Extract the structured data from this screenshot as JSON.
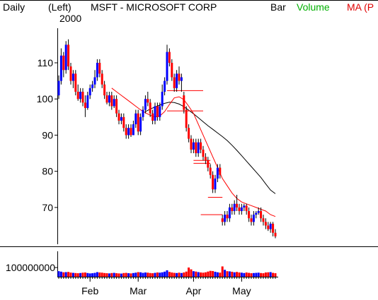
{
  "header": {
    "period": "Daily",
    "scale": "(Left)",
    "year": "2000",
    "title": "MSFT - MICROSOFT CORP",
    "bar_label": "Bar",
    "volume_label": "Volume",
    "ma_label": "MA (P",
    "colors": {
      "text": "#000000",
      "volume": "#00b000",
      "ma": "#e00000"
    }
  },
  "chart_data": [
    {
      "type": "candlestick",
      "title": "MSFT - MICROSOFT CORP",
      "ylim": [
        61,
        118
      ],
      "yticks": [
        70,
        80,
        90,
        100,
        110
      ],
      "xticks": [
        {
          "label": "Feb",
          "day": 13
        },
        {
          "label": "Mar",
          "day": 33
        },
        {
          "label": "Apr",
          "day": 56
        },
        {
          "label": "May",
          "day": 76
        }
      ],
      "colors": {
        "up": "#0000ff",
        "down": "#ff0000",
        "ma_short": "#ff0000",
        "ma_long": "#000000"
      },
      "ohlc": [
        [
          101.0,
          106.5,
          100.0,
          105.0
        ],
        [
          105.0,
          114.0,
          104.0,
          112.0
        ],
        [
          112.0,
          113.0,
          106.0,
          108.0
        ],
        [
          108.0,
          116.0,
          107.0,
          115.0
        ],
        [
          115.0,
          116.5,
          108.0,
          109.0
        ],
        [
          109.0,
          110.0,
          104.0,
          105.0
        ],
        [
          105.0,
          108.0,
          103.0,
          107.0
        ],
        [
          107.0,
          108.0,
          101.0,
          102.0
        ],
        [
          102.0,
          104.0,
          99.5,
          100.0
        ],
        [
          100.0,
          103.0,
          99.0,
          102.0
        ],
        [
          102.0,
          103.0,
          98.0,
          99.0
        ],
        [
          99.0,
          101.0,
          95.0,
          97.5
        ],
        [
          97.5,
          102.0,
          97.0,
          101.0
        ],
        [
          101.0,
          104.0,
          100.0,
          103.0
        ],
        [
          103.0,
          105.0,
          102.0,
          104.0
        ],
        [
          104.0,
          108.0,
          103.0,
          106.0
        ],
        [
          106.0,
          111.0,
          105.0,
          110.0
        ],
        [
          110.0,
          111.0,
          106.0,
          107.0
        ],
        [
          107.0,
          108.0,
          103.0,
          104.0
        ],
        [
          104.0,
          105.0,
          100.0,
          101.0
        ],
        [
          101.0,
          102.0,
          98.5,
          99.0
        ],
        [
          99.0,
          102.0,
          98.0,
          101.0
        ],
        [
          101.0,
          102.0,
          97.0,
          98.0
        ],
        [
          98.0,
          101.0,
          97.5,
          100.0
        ],
        [
          100.0,
          101.0,
          95.0,
          96.0
        ],
        [
          96.0,
          97.0,
          93.0,
          94.0
        ],
        [
          94.0,
          96.0,
          93.0,
          95.0
        ],
        [
          95.0,
          96.0,
          91.0,
          92.0
        ],
        [
          92.0,
          93.0,
          89.0,
          90.0
        ],
        [
          90.0,
          93.0,
          89.0,
          92.0
        ],
        [
          92.0,
          93.0,
          89.5,
          90.0
        ],
        [
          90.0,
          94.0,
          90.0,
          93.0
        ],
        [
          93.0,
          97.0,
          92.0,
          96.0
        ],
        [
          96.0,
          97.0,
          90.0,
          91.0
        ],
        [
          91.0,
          96.0,
          90.0,
          95.0
        ],
        [
          95.0,
          98.0,
          94.0,
          97.0
        ],
        [
          97.0,
          101.0,
          96.0,
          100.0
        ],
        [
          100.0,
          102.0,
          98.0,
          99.0
        ],
        [
          99.0,
          100.0,
          95.0,
          96.0
        ],
        [
          96.0,
          97.0,
          93.0,
          94.0
        ],
        [
          94.0,
          99.0,
          93.0,
          98.0
        ],
        [
          98.0,
          99.0,
          94.0,
          95.0
        ],
        [
          95.0,
          99.0,
          94.0,
          98.0
        ],
        [
          98.0,
          104.0,
          97.0,
          102.0
        ],
        [
          102.0,
          106.0,
          101.0,
          105.0
        ],
        [
          105.0,
          115.0,
          104.0,
          113.0
        ],
        [
          113.0,
          114.0,
          109.0,
          110.0
        ],
        [
          110.0,
          111.0,
          105.0,
          106.0
        ],
        [
          106.0,
          107.0,
          102.0,
          103.0
        ],
        [
          103.0,
          108.0,
          102.0,
          107.0
        ],
        [
          107.0,
          109.0,
          104.0,
          105.0
        ],
        [
          105.0,
          107.0,
          102.0,
          106.0
        ],
        [
          101.0,
          102.0,
          96.0,
          97.0
        ],
        [
          97.0,
          98.0,
          91.0,
          92.0
        ],
        [
          92.0,
          93.0,
          88.0,
          89.0
        ],
        [
          89.0,
          90.0,
          85.0,
          86.0
        ],
        [
          86.0,
          89.0,
          85.0,
          88.0
        ],
        [
          88.0,
          89.0,
          84.0,
          85.0
        ],
        [
          85.0,
          89.0,
          84.0,
          88.0
        ],
        [
          88.0,
          89.0,
          85.0,
          86.0
        ],
        [
          86.0,
          87.0,
          83.0,
          84.0
        ],
        [
          84.0,
          85.0,
          82.0,
          83.0
        ],
        [
          83.0,
          84.0,
          80.0,
          81.0
        ],
        [
          81.0,
          82.0,
          78.0,
          79.0
        ],
        [
          79.0,
          80.0,
          74.0,
          75.0
        ],
        [
          75.0,
          79.0,
          74.0,
          78.0
        ],
        [
          78.0,
          82.0,
          77.0,
          81.0
        ],
        [
          81.0,
          82.0,
          78.0,
          79.0
        ],
        [
          67.0,
          68.0,
          65.0,
          66.0
        ],
        [
          66.0,
          69.0,
          65.0,
          68.0
        ],
        [
          68.0,
          69.0,
          66.0,
          67.0
        ],
        [
          67.0,
          71.0,
          66.0,
          70.0
        ],
        [
          70.0,
          71.0,
          68.0,
          69.0
        ],
        [
          69.0,
          72.0,
          68.0,
          71.0
        ],
        [
          71.0,
          73.5,
          69.0,
          70.0
        ],
        [
          70.0,
          71.0,
          68.0,
          69.0
        ],
        [
          69.0,
          71.0,
          68.0,
          70.0
        ],
        [
          70.0,
          71.0,
          69.0,
          70.5
        ],
        [
          70.5,
          71.0,
          68.0,
          69.0
        ],
        [
          69.0,
          70.0,
          66.0,
          67.0
        ],
        [
          67.0,
          68.0,
          65.0,
          66.0
        ],
        [
          66.0,
          69.0,
          65.0,
          68.0
        ],
        [
          68.0,
          69.0,
          67.0,
          68.5
        ],
        [
          68.5,
          70.0,
          68.0,
          69.0
        ],
        [
          69.0,
          70.0,
          66.0,
          67.0
        ],
        [
          67.0,
          68.0,
          65.0,
          66.0
        ],
        [
          66.0,
          67.0,
          64.0,
          65.0
        ],
        [
          65.0,
          66.0,
          63.5,
          64.0
        ],
        [
          64.0,
          66.0,
          63.0,
          65.5
        ],
        [
          65.5,
          66.0,
          62.0,
          63.0
        ],
        [
          63.0,
          64.0,
          61.5,
          62.0
        ]
      ],
      "ma_short": [
        [
          22,
          103
        ],
        [
          24,
          102
        ],
        [
          26,
          101
        ],
        [
          28,
          100
        ],
        [
          30,
          99
        ],
        [
          32,
          98
        ],
        [
          34,
          97
        ],
        [
          36,
          96.2
        ],
        [
          38,
          95.5
        ],
        [
          40,
          95
        ],
        [
          42,
          95.3
        ],
        [
          44,
          96.5
        ],
        [
          46,
          98.5
        ],
        [
          48,
          100.3
        ],
        [
          50,
          100.6
        ],
        [
          52,
          99.8
        ],
        [
          54,
          98
        ],
        [
          56,
          96
        ],
        [
          58,
          93
        ],
        [
          60,
          90
        ],
        [
          62,
          87
        ],
        [
          64,
          84
        ],
        [
          66,
          81
        ],
        [
          68,
          78
        ],
        [
          70,
          76
        ],
        [
          72,
          74
        ],
        [
          74,
          72.5
        ],
        [
          76,
          71.5
        ],
        [
          78,
          71
        ],
        [
          80,
          70.5
        ],
        [
          82,
          70
        ],
        [
          84,
          69.5
        ],
        [
          86,
          69
        ],
        [
          88,
          68
        ],
        [
          90,
          67.5
        ]
      ],
      "ma_long": [
        [
          36,
          96.5
        ],
        [
          38,
          97.2
        ],
        [
          40,
          97.8
        ],
        [
          42,
          98.3
        ],
        [
          44,
          98.8
        ],
        [
          46,
          99.1
        ],
        [
          48,
          99.0
        ],
        [
          50,
          98.6
        ],
        [
          52,
          97.9
        ],
        [
          54,
          96.9
        ],
        [
          56,
          95.9
        ],
        [
          58,
          94.8
        ],
        [
          60,
          93.7
        ],
        [
          62,
          92.6
        ],
        [
          64,
          91.6
        ],
        [
          66,
          90.6
        ],
        [
          68,
          89.6
        ],
        [
          70,
          88.5
        ],
        [
          72,
          87.2
        ],
        [
          74,
          85.8
        ],
        [
          76,
          84.3
        ],
        [
          78,
          82.8
        ],
        [
          80,
          81.3
        ],
        [
          82,
          79.8
        ],
        [
          84,
          78.3
        ],
        [
          86,
          76.5
        ],
        [
          88,
          74.8
        ],
        [
          90,
          73.8
        ]
      ],
      "gap_lines": [
        {
          "y": 102.3,
          "x_from": 45,
          "x_to": 60
        },
        {
          "y": 96.7,
          "x_from": 45,
          "x_to": 60
        },
        {
          "y": 83.0,
          "x_from": 56,
          "x_to": 63
        },
        {
          "y": 82.2,
          "x_from": 56,
          "x_to": 63
        },
        {
          "y": 72.8,
          "x_from": 62,
          "x_to": 68
        },
        {
          "y": 68.0,
          "x_from": 59,
          "x_to": 68
        }
      ]
    },
    {
      "type": "bar",
      "title": "Volume",
      "ytick_label": "100000000",
      "ytick_value": 100000000,
      "ylim": [
        0,
        200000000
      ],
      "colors": {
        "up": "#0000ff",
        "down": "#ff0000"
      },
      "values": [
        60,
        55,
        48,
        50,
        52,
        45,
        42,
        40,
        38,
        40,
        44,
        46,
        40,
        36,
        38,
        42,
        50,
        46,
        44,
        40,
        38,
        36,
        40,
        42,
        38,
        36,
        34,
        40,
        42,
        38,
        36,
        40,
        44,
        50,
        48,
        42,
        46,
        44,
        40,
        38,
        42,
        46,
        44,
        48,
        55,
        70,
        52,
        46,
        42,
        40,
        44,
        40,
        46,
        56,
        100,
        80,
        60,
        56,
        50,
        46,
        44,
        48,
        56,
        64,
        62,
        54,
        48,
        44,
        112,
        75,
        60,
        58,
        54,
        48,
        52,
        46,
        44,
        40,
        46,
        42,
        38,
        40,
        42,
        44,
        40,
        38,
        46,
        48,
        50,
        42,
        38
      ],
      "volume_unit": 1000000
    }
  ]
}
